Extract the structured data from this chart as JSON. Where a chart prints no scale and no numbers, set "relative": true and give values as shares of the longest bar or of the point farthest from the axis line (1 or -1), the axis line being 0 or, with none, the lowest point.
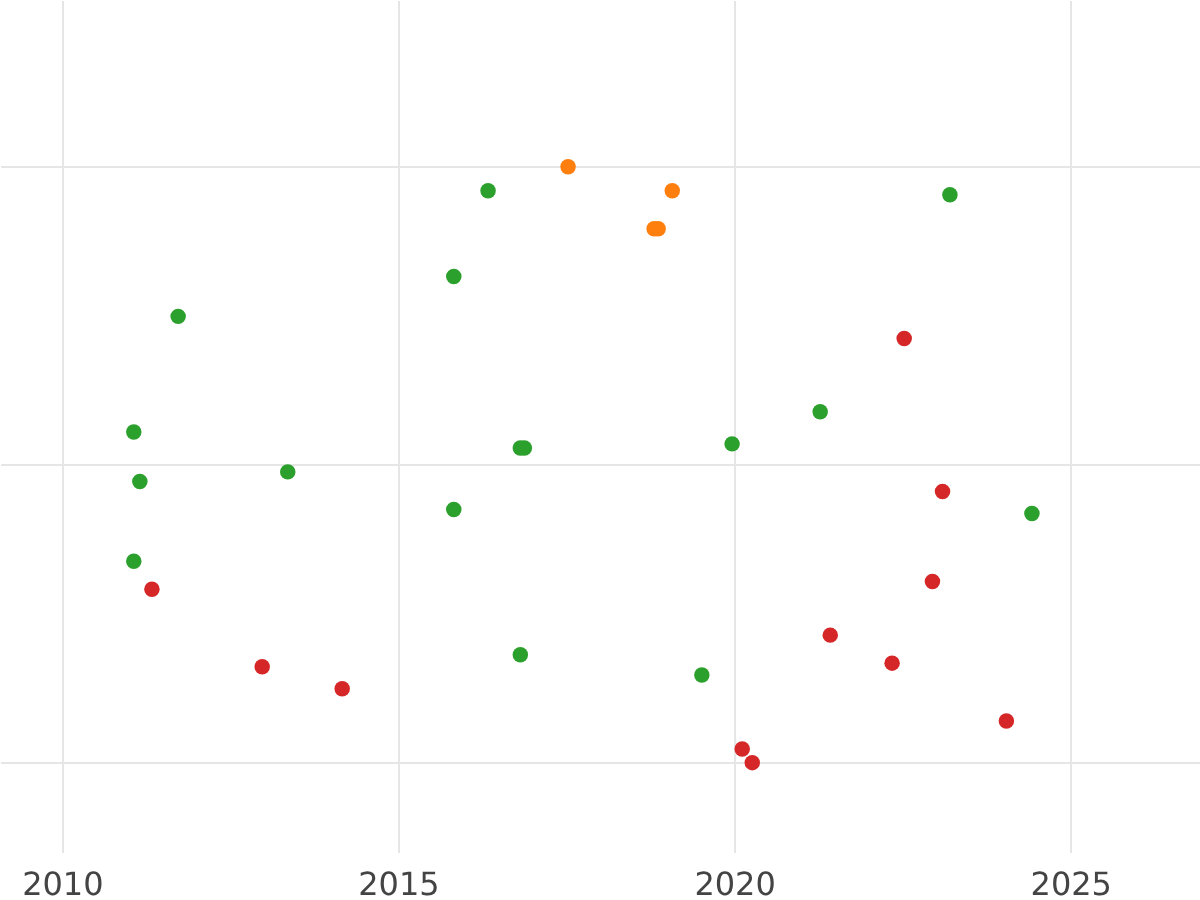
{
  "chart_data": {
    "type": "scatter",
    "relative": true,
    "grid": true,
    "tick_labels": "x",
    "marker": "circle",
    "xlim": [
      2009.08,
      2026.93
    ],
    "xticks": [
      2010,
      2015,
      2020,
      2025
    ],
    "series": [
      {
        "color": "#2ca02c",
        "x": [
          2016.34,
          2023.21,
          2015.83,
          2011.73,
          2011.07,
          2021.28,
          2016.82,
          2016.88,
          2019.97,
          2013.36,
          2011.16,
          2015.83,
          2024.43,
          2011.07,
          2016.82,
          2019.52
        ],
        "values": [
          0.96,
          0.953,
          0.816,
          0.749,
          0.555,
          0.589,
          0.528,
          0.528,
          0.535,
          0.488,
          0.472,
          0.425,
          0.418,
          0.338,
          0.181,
          0.147
        ]
      },
      {
        "color": "#ff7f0e",
        "x": [
          2017.53,
          2019.08,
          2018.81,
          2018.87
        ],
        "values": [
          1.0,
          0.96,
          0.896,
          0.896
        ]
      },
      {
        "color": "#d62728",
        "x": [
          2022.53,
          2023.1,
          2011.34,
          2022.95,
          2021.43,
          2022.35,
          2012.98,
          2014.17,
          2024.05,
          2020.12,
          2020.27
        ],
        "values": [
          0.712,
          0.455,
          0.291,
          0.304,
          0.214,
          0.167,
          0.161,
          0.124,
          0.07,
          0.023,
          0.0
        ]
      }
    ]
  }
}
